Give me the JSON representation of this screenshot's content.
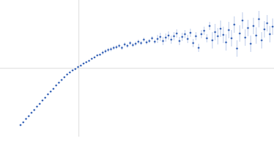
{
  "chart_data": {
    "type": "scatter",
    "x": [
      -0.85,
      -0.81,
      -0.77,
      -0.73,
      -0.69,
      -0.65,
      -0.61,
      -0.57,
      -0.53,
      -0.49,
      -0.45,
      -0.41,
      -0.37,
      -0.33,
      -0.29,
      -0.25,
      -0.21,
      -0.17,
      -0.13,
      -0.09,
      -0.05,
      -0.01,
      0.03,
      0.07,
      0.11,
      0.15,
      0.19,
      0.23,
      0.27,
      0.31,
      0.35,
      0.39,
      0.43,
      0.47,
      0.51,
      0.55,
      0.59,
      0.63,
      0.67,
      0.71,
      0.75,
      0.79,
      0.83,
      0.87,
      0.91,
      0.95,
      0.99,
      1.03,
      1.07,
      1.11,
      1.15,
      1.19,
      1.23,
      1.27,
      1.31,
      1.35,
      1.39,
      1.43,
      1.47,
      1.51,
      1.55,
      1.59,
      1.63,
      1.67,
      1.71,
      1.75,
      1.79,
      1.83,
      1.87,
      1.91,
      1.95,
      1.99,
      2.03,
      2.07,
      2.11,
      2.15,
      2.19,
      2.23,
      2.27,
      2.31,
      2.35,
      2.39,
      2.43,
      2.47,
      2.51,
      2.55,
      2.59,
      2.63,
      2.67,
      2.71,
      2.75,
      2.79,
      2.83
    ],
    "series": [
      {
        "color": "#3a66b8",
        "error_color": "#a9bde3",
        "values": [
          -0.83,
          -0.79,
          -0.74,
          -0.7,
          -0.65,
          -0.61,
          -0.56,
          -0.52,
          -0.47,
          -0.43,
          -0.38,
          -0.34,
          -0.3,
          -0.25,
          -0.21,
          -0.17,
          -0.13,
          -0.09,
          -0.06,
          -0.03,
          -0.01,
          0.02,
          0.04,
          0.07,
          0.09,
          0.11,
          0.14,
          0.16,
          0.19,
          0.2,
          0.23,
          0.25,
          0.27,
          0.28,
          0.3,
          0.31,
          0.33,
          0.3,
          0.35,
          0.33,
          0.37,
          0.34,
          0.36,
          0.39,
          0.37,
          0.42,
          0.38,
          0.4,
          0.44,
          0.39,
          0.43,
          0.46,
          0.4,
          0.45,
          0.48,
          0.42,
          0.47,
          0.51,
          0.4,
          0.46,
          0.5,
          0.43,
          0.52,
          0.37,
          0.47,
          0.3,
          0.5,
          0.55,
          0.44,
          0.62,
          0.41,
          0.53,
          0.47,
          0.58,
          0.49,
          0.38,
          0.56,
          0.44,
          0.64,
          0.29,
          0.51,
          0.7,
          0.45,
          0.59,
          0.36,
          0.62,
          0.48,
          0.72,
          0.41,
          0.57,
          0.66,
          0.5,
          0.61
        ],
        "errors": [
          0.01,
          0.01,
          0.01,
          0.01,
          0.01,
          0.01,
          0.01,
          0.01,
          0.01,
          0.01,
          0.01,
          0.01,
          0.01,
          0.01,
          0.01,
          0.01,
          0.01,
          0.01,
          0.01,
          0.01,
          0.01,
          0.01,
          0.01,
          0.01,
          0.01,
          0.01,
          0.01,
          0.01,
          0.01,
          0.01,
          0.03,
          0.03,
          0.03,
          0.03,
          0.03,
          0.03,
          0.03,
          0.03,
          0.03,
          0.03,
          0.03,
          0.03,
          0.03,
          0.03,
          0.03,
          0.03,
          0.03,
          0.03,
          0.03,
          0.03,
          0.06,
          0.06,
          0.06,
          0.06,
          0.06,
          0.06,
          0.06,
          0.06,
          0.06,
          0.06,
          0.06,
          0.06,
          0.06,
          0.06,
          0.06,
          0.06,
          0.06,
          0.06,
          0.06,
          0.06,
          0.12,
          0.12,
          0.12,
          0.12,
          0.12,
          0.12,
          0.12,
          0.12,
          0.12,
          0.12,
          0.12,
          0.12,
          0.12,
          0.12,
          0.12,
          0.12,
          0.12,
          0.12,
          0.12,
          0.12,
          0.12,
          0.12,
          0.12
        ]
      }
    ],
    "xlim": [
      -1.15,
      2.85
    ],
    "ylim": [
      -1,
      1
    ],
    "axes_at_zero": true,
    "axis_color": "#d8d8d8"
  }
}
